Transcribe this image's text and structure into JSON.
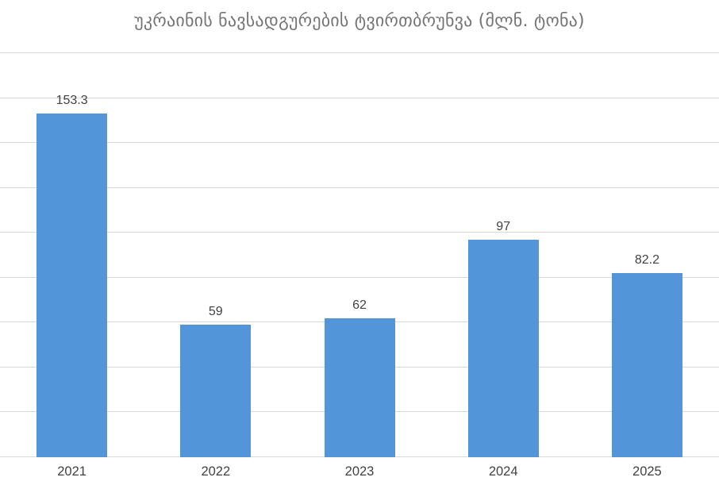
{
  "chart_data": {
    "type": "bar",
    "title": "უკრაინის ნავსადგურების ტვირთბრუნვა (მლნ. ტონა)",
    "categories": [
      "2021",
      "2022",
      "2023",
      "2024",
      "2025"
    ],
    "values": [
      153.3,
      59,
      62,
      97,
      82.2
    ],
    "data_labels": [
      "153.3",
      "59",
      "62",
      "97",
      "82.2"
    ],
    "xlabel": "",
    "ylabel": "",
    "ylim": [
      0,
      180
    ],
    "grid_step": 20,
    "grid": "horizontal-unlabeled",
    "legend_position": "none",
    "colors": {
      "bar": "#5295d8",
      "gridline": "#d9d9d9",
      "title": "#757575",
      "data_label": "#424242",
      "axis_label": "#424242",
      "background": "#ffffff"
    }
  }
}
